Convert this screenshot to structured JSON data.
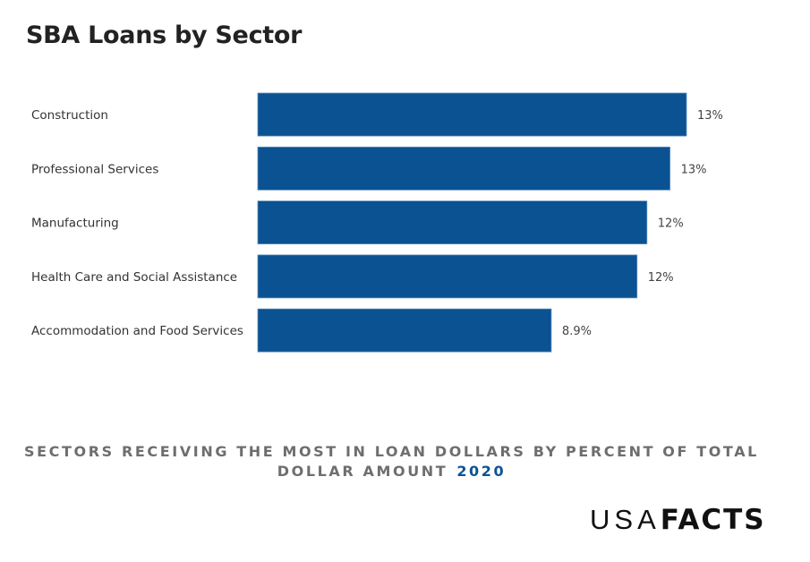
{
  "header": {
    "title": "SBA Loans by Sector"
  },
  "chart_data": {
    "type": "bar",
    "orientation": "horizontal",
    "title": "SBA Loans by Sector",
    "subtitle": "SECTORS RECEIVING THE MOST IN LOAN DOLLARS BY PERCENT OF TOTAL DOLLAR AMOUNT",
    "subtitle_year": "2020",
    "xlabel": "",
    "ylabel": "",
    "categories": [
      "Construction",
      "Professional Services",
      "Manufacturing",
      "Health Care and Social Assistance",
      "Accommodation and Food Services"
    ],
    "values": [
      13.0,
      12.5,
      11.8,
      11.5,
      8.9
    ],
    "value_labels": [
      "13%",
      "13%",
      "12%",
      "12%",
      "8.9%"
    ],
    "unit": "%",
    "xlim": [
      0,
      13.0
    ],
    "grid": false,
    "legend": "none",
    "bar_color": "#0a5291"
  },
  "footer": {
    "logo_part1": "USA",
    "logo_part2": "FACTS"
  }
}
